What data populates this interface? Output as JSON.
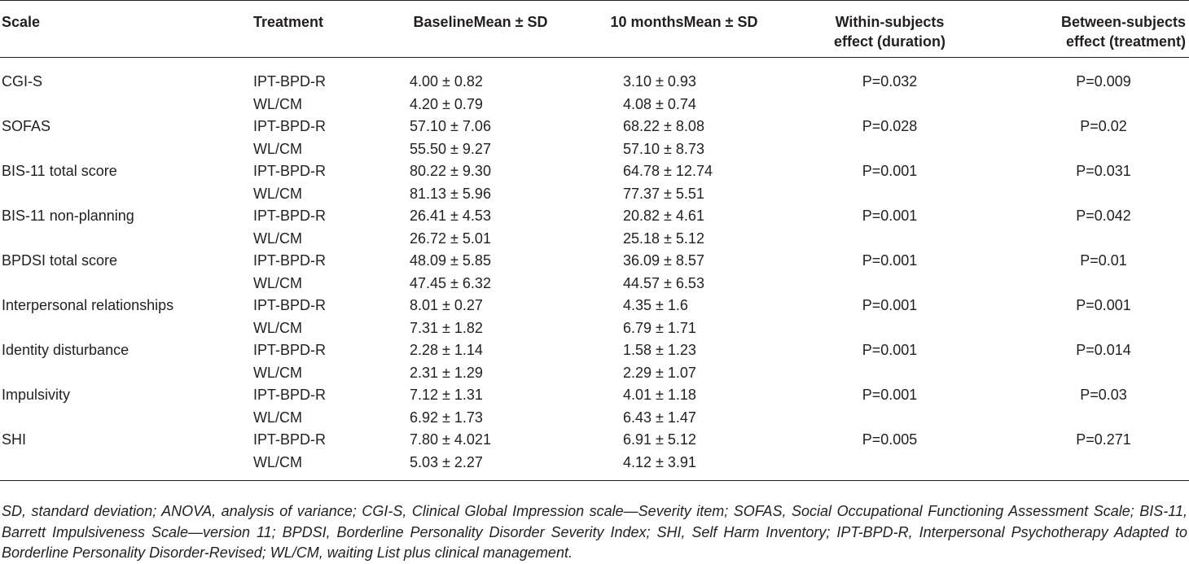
{
  "table": {
    "headers": {
      "scale": "Scale",
      "treatment": "Treatment",
      "baseline": "BaselineMean ± SD",
      "ten_months": "10 monthsMean ± SD",
      "within_line1": "Within-subjects",
      "within_line2": "effect (duration)",
      "between_line1": "Between-subjects",
      "between_line2": "effect (treatment)"
    },
    "groups": [
      {
        "scale": "CGI-S",
        "within": "P=0.032",
        "between": "P=0.009",
        "rows": [
          {
            "treatment": "IPT-BPD-R",
            "baseline": "4.00 ± 0.82",
            "ten_months": "3.10 ± 0.93"
          },
          {
            "treatment": "WL/CM",
            "baseline": "4.20 ± 0.79",
            "ten_months": "4.08 ± 0.74"
          }
        ]
      },
      {
        "scale": "SOFAS",
        "within": "P=0.028",
        "between": "P=0.02",
        "rows": [
          {
            "treatment": "IPT-BPD-R",
            "baseline": "57.10 ± 7.06",
            "ten_months": "68.22 ± 8.08"
          },
          {
            "treatment": "WL/CM",
            "baseline": "55.50 ± 9.27",
            "ten_months": "57.10 ± 8.73"
          }
        ]
      },
      {
        "scale": "BIS-11 total score",
        "within": "P=0.001",
        "between": "P=0.031",
        "rows": [
          {
            "treatment": "IPT-BPD-R",
            "baseline": "80.22 ± 9.30",
            "ten_months": "64.78 ± 12.74"
          },
          {
            "treatment": "WL/CM",
            "baseline": "81.13 ± 5.96",
            "ten_months": "77.37 ± 5.51"
          }
        ]
      },
      {
        "scale": "BIS-11 non-planning",
        "within": "P=0.001",
        "between": "P=0.042",
        "rows": [
          {
            "treatment": "IPT-BPD-R",
            "baseline": "26.41 ± 4.53",
            "ten_months": "20.82 ± 4.61"
          },
          {
            "treatment": "WL/CM",
            "baseline": "26.72 ± 5.01",
            "ten_months": "25.18 ± 5.12"
          }
        ]
      },
      {
        "scale": "BPDSI total score",
        "within": "P=0.001",
        "between": "P=0.01",
        "rows": [
          {
            "treatment": "IPT-BPD-R",
            "baseline": "48.09 ± 5.85",
            "ten_months": "36.09 ± 8.57"
          },
          {
            "treatment": "WL/CM",
            "baseline": "47.45 ± 6.32",
            "ten_months": "44.57 ± 6.53"
          }
        ]
      },
      {
        "scale": "Interpersonal relationships",
        "within": "P=0.001",
        "between": "P=0.001",
        "rows": [
          {
            "treatment": "IPT-BPD-R",
            "baseline": "8.01 ± 0.27",
            "ten_months": "4.35 ± 1.6"
          },
          {
            "treatment": "WL/CM",
            "baseline": "7.31 ± 1.82",
            "ten_months": "6.79 ± 1.71"
          }
        ]
      },
      {
        "scale": "Identity disturbance",
        "within": "P=0.001",
        "between": "P=0.014",
        "rows": [
          {
            "treatment": "IPT-BPD-R",
            "baseline": "2.28 ± 1.14",
            "ten_months": "1.58 ± 1.23"
          },
          {
            "treatment": "WL/CM",
            "baseline": "2.31 ± 1.29",
            "ten_months": "2.29 ± 1.07"
          }
        ]
      },
      {
        "scale": "Impulsivity",
        "within": "P=0.001",
        "between": "P=0.03",
        "rows": [
          {
            "treatment": "IPT-BPD-R",
            "baseline": "7.12 ± 1.31",
            "ten_months": "4.01 ± 1.18"
          },
          {
            "treatment": "WL/CM",
            "baseline": "6.92 ± 1.73",
            "ten_months": "6.43 ± 1.47"
          }
        ]
      },
      {
        "scale": "SHI",
        "within": "P=0.005",
        "between": "P=0.271",
        "rows": [
          {
            "treatment": "IPT-BPD-R",
            "baseline": "7.80 ± 4.021",
            "ten_months": "6.91 ± 5.12"
          },
          {
            "treatment": "WL/CM",
            "baseline": "5.03 ± 2.27",
            "ten_months": "4.12 ± 3.91"
          }
        ]
      }
    ]
  },
  "footnote": "SD, standard deviation; ANOVA, analysis of variance; CGI-S, Clinical Global Impression scale—Severity item; SOFAS, Social Occupational Functioning Assessment Scale; BIS-11, Barrett Impulsiveness Scale—version 11; BPDSI, Borderline Personality Disorder Severity Index; SHI, Self Harm Inventory; IPT-BPD-R, Interpersonal Psychotherapy Adapted to Borderline Personality Disorder-Revised; WL/CM, waiting List plus clinical management."
}
